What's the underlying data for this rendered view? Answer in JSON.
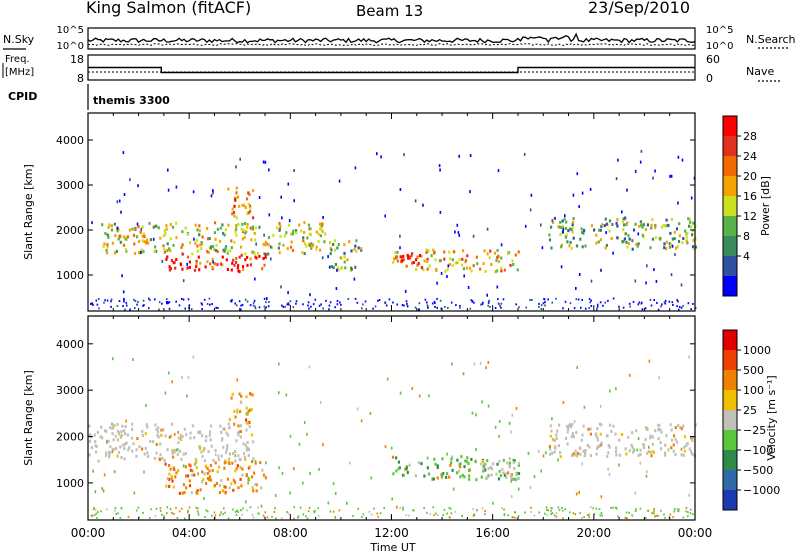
{
  "header": {
    "station": "King Salmon (fitACF)",
    "beam": "Beam 13",
    "date": "23/Sep/2010"
  },
  "noise_panel": {
    "left_label": "N.Sky",
    "right_label": "N.Search",
    "left_ticks": [
      "10^5",
      "10^0"
    ],
    "right_ticks": [
      "10^5",
      "10^0"
    ]
  },
  "freq_panel": {
    "left_label_line1": "Freq.",
    "left_label_line2": "[MHz]",
    "left_ticks": [
      "18",
      "8"
    ],
    "right_ticks": [
      "60",
      "0"
    ],
    "right_label": "Nave"
  },
  "cpid_panel": {
    "label": "CPID",
    "value": "themis 3300"
  },
  "power_panel": {
    "ylabel": "Slant Range [km]",
    "yticks": [
      "4000",
      "3000",
      "2000",
      "1000"
    ],
    "colorbar_label": "Power [dB]",
    "colorbar_ticks": [
      "28",
      "24",
      "20",
      "16",
      "12",
      "8",
      "4"
    ],
    "colors": [
      "#0000ff",
      "#2f52a0",
      "#3c8a5e",
      "#58b44a",
      "#cde020",
      "#f5a300",
      "#f06a00",
      "#e03020",
      "#ff0000"
    ]
  },
  "velocity_panel": {
    "ylabel": "Slant Range [km]",
    "yticks": [
      "4000",
      "3000",
      "2000",
      "1000"
    ],
    "colorbar_label": "Velocity [m s⁻¹]",
    "colorbar_ticks": [
      "1000",
      "500",
      "100",
      "25",
      "−25",
      "−100",
      "−500",
      "−1000"
    ],
    "colors": [
      "#1c3ab0",
      "#2f6aa8",
      "#2f8a4a",
      "#58c83a",
      "#c0c0b8",
      "#f0c000",
      "#f08000",
      "#f04000",
      "#e00000"
    ]
  },
  "x_axis": {
    "ticks": [
      "00:00",
      "04:00",
      "08:00",
      "12:00",
      "16:00",
      "20:00",
      "00:00"
    ],
    "label": "Time UT"
  },
  "chart_data": [
    {
      "type": "line",
      "title": "",
      "xlabel": "Time UT",
      "ylabel": "N.Sky",
      "y_scale": "log",
      "ylim_exponent": [
        0,
        5
      ]
    },
    {
      "type": "line",
      "xlabel": "Time UT",
      "ylabel": "Freq. [MHz]",
      "ylim": [
        8,
        18
      ],
      "x_hours": [
        0,
        2.9,
        2.9,
        17.0,
        17.0,
        24
      ],
      "frequency_mhz": [
        13,
        13,
        11,
        11,
        13,
        13
      ],
      "nave_ylim": [
        0,
        60
      ]
    },
    {
      "type": "heatmap",
      "ylabel": "Slant Range [km]",
      "colorbar": "Power [dB]",
      "x_range_hours": [
        0,
        24
      ],
      "y_range_km": [
        200,
        4600
      ],
      "clim_db": [
        0,
        30
      ],
      "regions": [
        {
          "x": [
            0.5,
            9.5
          ],
          "y_km": [
            1500,
            2200
          ],
          "power_db": 14
        },
        {
          "x": [
            2.9,
            7.0
          ],
          "y_km": [
            1100,
            1500
          ],
          "power_db": 26
        },
        {
          "x": [
            5.5,
            6.5
          ],
          "y_km": [
            2300,
            3000
          ],
          "power_db": 20
        },
        {
          "x": [
            9.5,
            10.8
          ],
          "y_km": [
            1100,
            1800
          ],
          "power_db": 10
        },
        {
          "x": [
            12.0,
            17.0
          ],
          "y_km": [
            1100,
            1600
          ],
          "power_db": 18
        },
        {
          "x": [
            12.2,
            13.2
          ],
          "y_km": [
            1200,
            1500
          ],
          "power_db": 28
        },
        {
          "x": [
            18.2,
            24.0
          ],
          "y_km": [
            1600,
            2300
          ],
          "power_db": 12
        }
      ]
    },
    {
      "type": "heatmap",
      "ylabel": "Slant Range [km]",
      "colorbar": "Velocity [m s-1]",
      "x_range_hours": [
        0,
        24
      ],
      "y_range_km": [
        200,
        4600
      ],
      "clim_ms": [
        -1000,
        1000
      ],
      "regions": [
        {
          "x": [
            0.0,
            6.5
          ],
          "y_km": [
            1500,
            2300
          ],
          "velocity": 0
        },
        {
          "x": [
            2.9,
            7.0
          ],
          "y_km": [
            800,
            1500
          ],
          "velocity": -200
        },
        {
          "x": [
            5.5,
            6.5
          ],
          "y_km": [
            2300,
            3000
          ],
          "velocity": -300
        },
        {
          "x": [
            12.0,
            17.0
          ],
          "y_km": [
            1100,
            1600
          ],
          "velocity": 50
        },
        {
          "x": [
            15.5,
            17.0
          ],
          "y_km": [
            1100,
            1500
          ],
          "velocity": 0
        },
        {
          "x": [
            18.2,
            24.0
          ],
          "y_km": [
            1600,
            2300
          ],
          "velocity": 0
        }
      ]
    }
  ]
}
